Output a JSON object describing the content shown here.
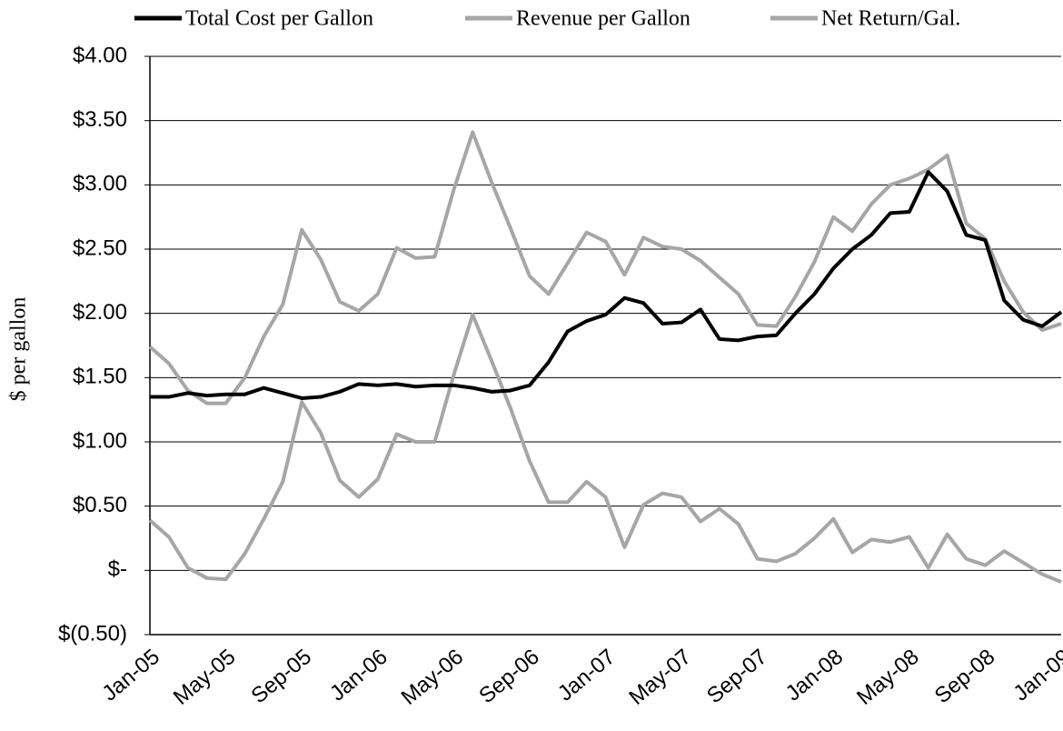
{
  "chart_data": {
    "type": "line",
    "y_label": "$ per gallon",
    "categories": [
      "Jan-05",
      null,
      null,
      null,
      "May-05",
      null,
      null,
      null,
      "Sep-05",
      null,
      null,
      null,
      "Jan-06",
      null,
      null,
      null,
      "May-06",
      null,
      null,
      null,
      "Sep-06",
      null,
      null,
      null,
      "Jan-07",
      null,
      null,
      null,
      "May-07",
      null,
      null,
      null,
      "Sep-07",
      null,
      null,
      null,
      "Jan-08",
      null,
      null,
      null,
      "May-08",
      null,
      null,
      null,
      "Sep-08",
      null,
      null,
      null,
      "Jan-09"
    ],
    "series": [
      {
        "name": "Total Cost per Gallon",
        "color": "#000000",
        "values": [
          1.35,
          1.35,
          1.38,
          1.36,
          1.37,
          1.37,
          1.42,
          1.38,
          1.34,
          1.35,
          1.39,
          1.45,
          1.44,
          1.45,
          1.43,
          1.44,
          1.44,
          1.42,
          1.39,
          1.4,
          1.44,
          1.62,
          1.86,
          1.94,
          1.99,
          2.12,
          2.08,
          1.92,
          1.93,
          2.03,
          1.8,
          1.79,
          1.82,
          1.83,
          2.0,
          2.15,
          2.35,
          2.5,
          2.61,
          2.78,
          2.79,
          3.1,
          2.95,
          2.61,
          2.57,
          2.1,
          1.95,
          1.9,
          2.01
        ]
      },
      {
        "name": "Revenue per Gallon",
        "color": "#a6a6a6",
        "values": [
          1.74,
          1.61,
          1.4,
          1.3,
          1.3,
          1.5,
          1.82,
          2.07,
          2.65,
          2.42,
          2.09,
          2.02,
          2.15,
          2.51,
          2.43,
          2.44,
          2.96,
          3.41,
          3.02,
          2.66,
          2.29,
          2.15,
          2.39,
          2.63,
          2.56,
          2.3,
          2.59,
          2.52,
          2.5,
          2.41,
          2.28,
          2.15,
          1.91,
          1.9,
          2.13,
          2.4,
          2.75,
          2.64,
          2.85,
          3.0,
          3.05,
          3.12,
          3.23,
          2.7,
          2.58,
          2.25,
          2.01,
          1.87,
          1.92
        ]
      },
      {
        "name": "Net Return/Gal.",
        "color": "#a6a6a6",
        "values": [
          0.39,
          0.26,
          0.02,
          -0.06,
          -0.07,
          0.13,
          0.4,
          0.69,
          1.31,
          1.07,
          0.7,
          0.57,
          0.71,
          1.06,
          1.0,
          1.0,
          1.52,
          1.99,
          1.63,
          1.26,
          0.85,
          0.53,
          0.53,
          0.69,
          0.57,
          0.18,
          0.51,
          0.6,
          0.57,
          0.38,
          0.48,
          0.36,
          0.09,
          0.07,
          0.13,
          0.25,
          0.4,
          0.14,
          0.24,
          0.22,
          0.26,
          0.02,
          0.28,
          0.09,
          0.04,
          0.15,
          0.06,
          -0.03,
          -0.09
        ]
      }
    ],
    "ylim": [
      -0.5,
      4.0
    ],
    "yticks": [
      {
        "value": -0.5,
        "label": "$(0.50)"
      },
      {
        "value": 0,
        "label": "$-"
      },
      {
        "value": 0.5,
        "label": "$0.50"
      },
      {
        "value": 1.0,
        "label": "$1.00"
      },
      {
        "value": 1.5,
        "label": "$1.50"
      },
      {
        "value": 2.0,
        "label": "$2.00"
      },
      {
        "value": 2.5,
        "label": "$2.50"
      },
      {
        "value": 3.0,
        "label": "$3.00"
      },
      {
        "value": 3.5,
        "label": "$3.50"
      },
      {
        "value": 4.0,
        "label": "$4.00"
      }
    ],
    "grid": true
  }
}
